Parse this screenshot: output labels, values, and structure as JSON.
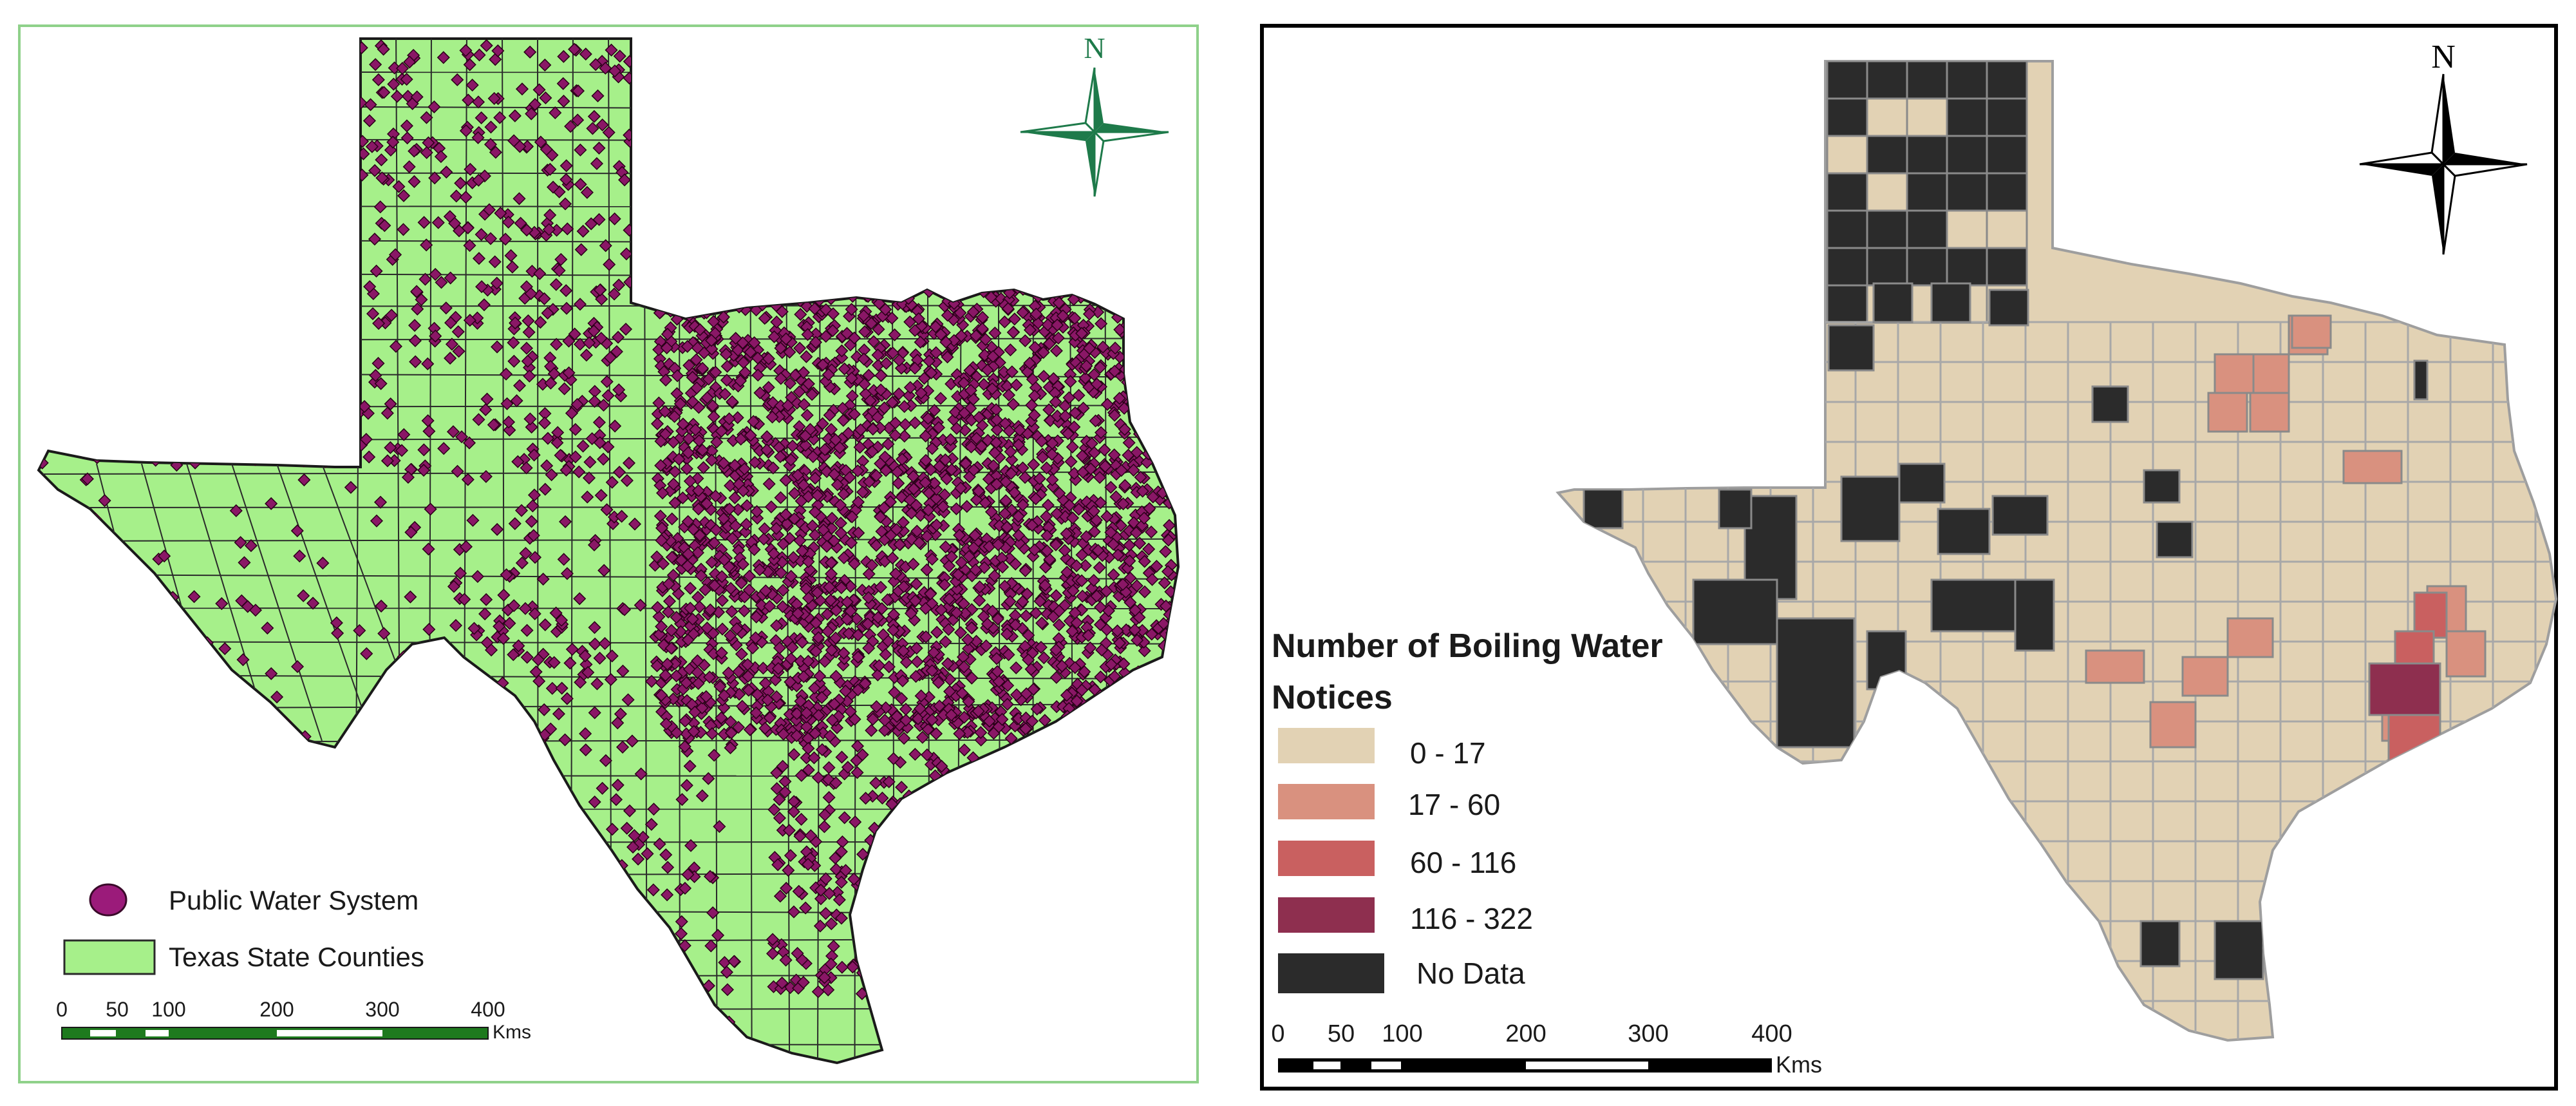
{
  "left_map": {
    "north_label": "N",
    "legend": [
      {
        "label": "Public Water System",
        "color": "#9b1b7a",
        "symbol": "point"
      },
      {
        "label": "Texas State Counties",
        "color": "#a6f08a",
        "symbol": "polygon"
      }
    ],
    "scale_ticks": [
      "0",
      "50",
      "100",
      "200",
      "300",
      "400"
    ],
    "scale_unit": "Kms",
    "colors": {
      "land": "#a6f08a",
      "point": "#8a1766",
      "north_arrow": "#1e7a4a",
      "border": "#000000"
    }
  },
  "right_map": {
    "north_label": "N",
    "legend_title": "Number of Boiling Water Notices",
    "legend": [
      {
        "label": "0 - 17",
        "color": "#e2d2b4"
      },
      {
        "label": "17 - 60",
        "color": "#d9917f"
      },
      {
        "label": "60 - 116",
        "color": "#c96060"
      },
      {
        "label": "116 - 322",
        "color": "#8e2f4f"
      },
      {
        "label": "No Data",
        "color": "#2b2b2b"
      }
    ],
    "scale_ticks": [
      "0",
      "50",
      "100",
      "200",
      "300",
      "400"
    ],
    "scale_unit": "Kms"
  }
}
